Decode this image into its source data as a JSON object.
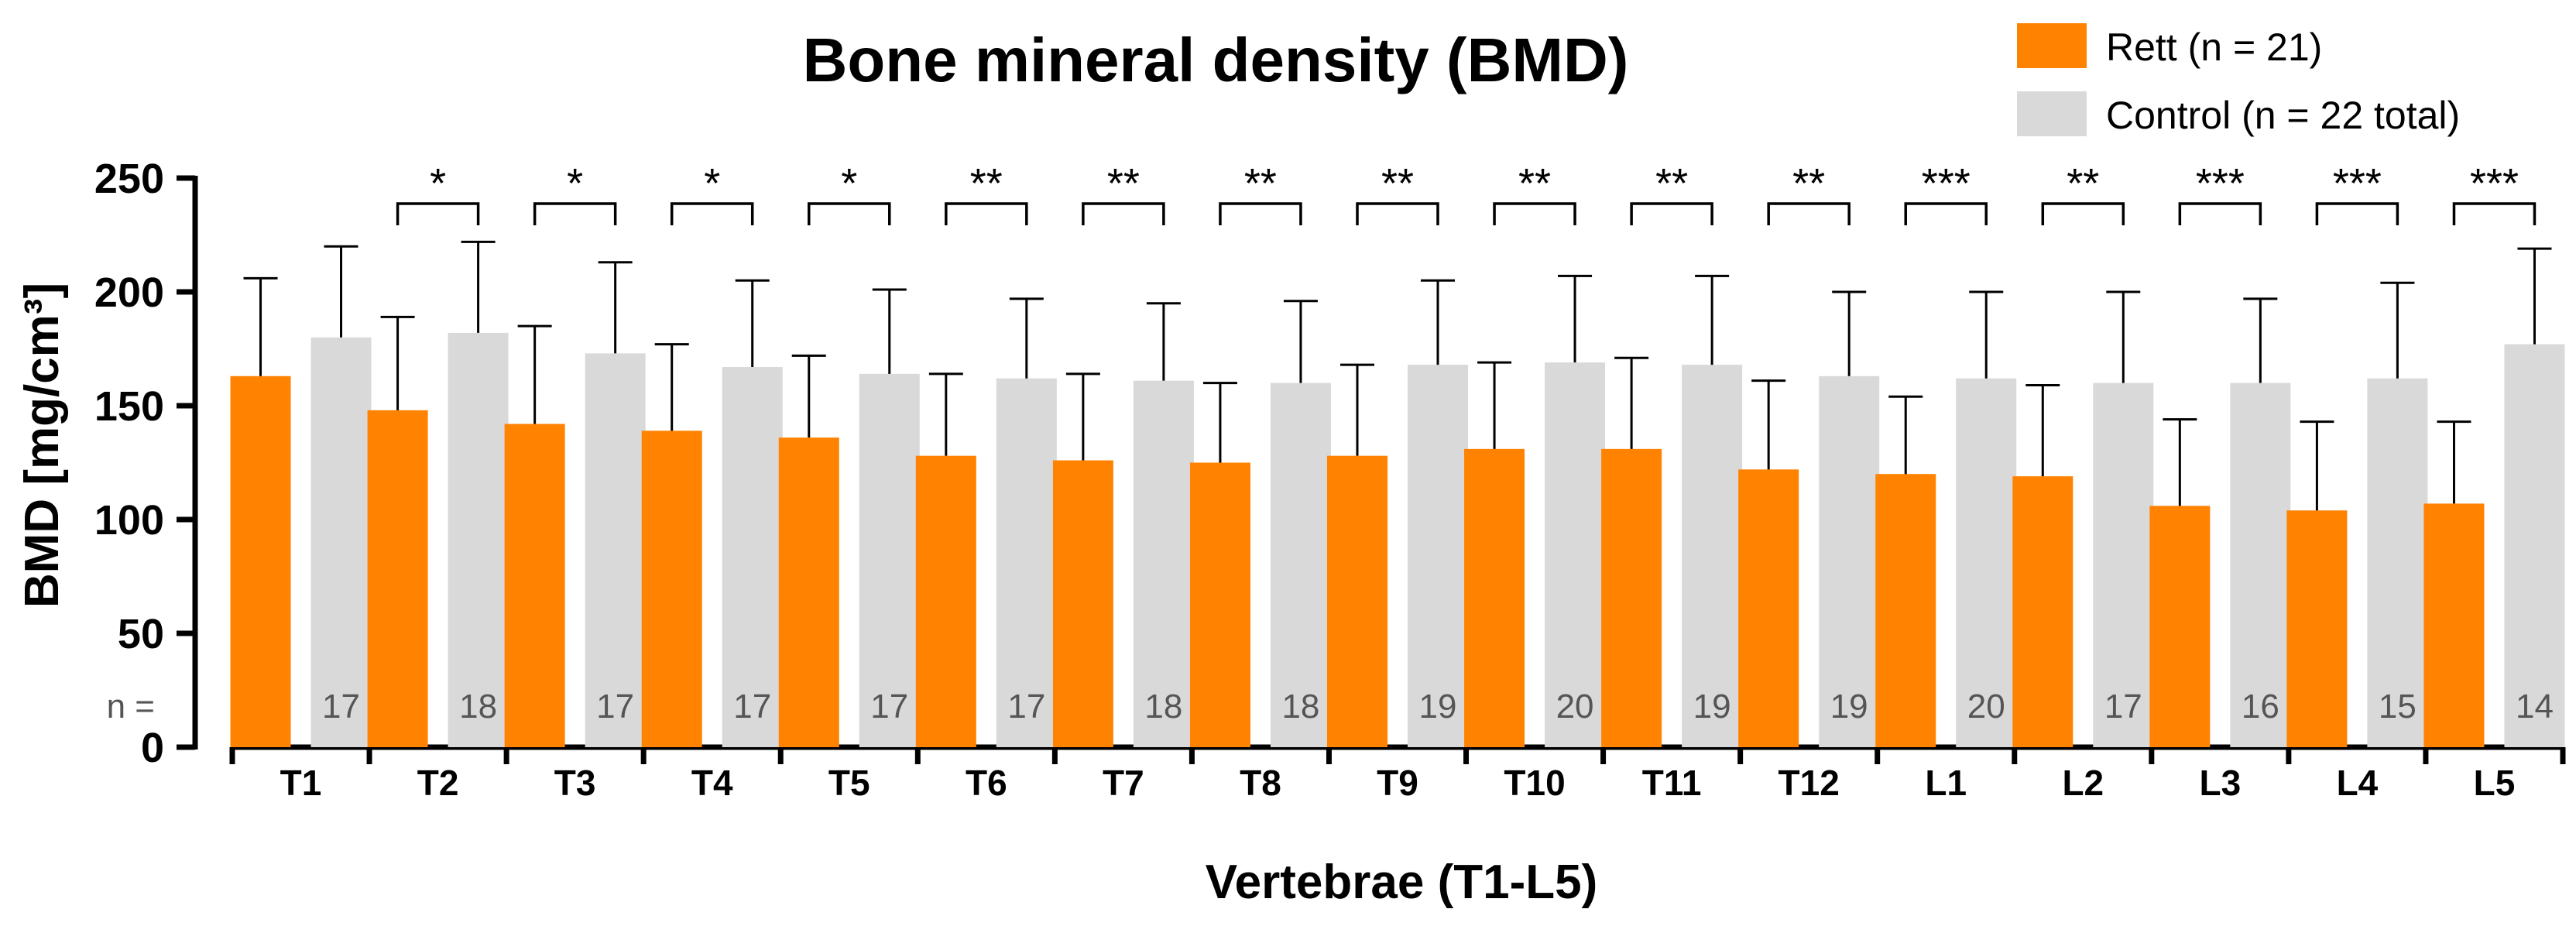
{
  "chart_data": {
    "type": "bar",
    "title": "Bone mineral density (BMD)",
    "xlabel": "Vertebrae (T1-L5)",
    "ylabel": "BMD [mg/cm³]",
    "ylim": [
      0,
      250
    ],
    "yticks": [
      "0",
      "50",
      "100",
      "150",
      "200",
      "250"
    ],
    "categories": [
      "T1",
      "T2",
      "T3",
      "T4",
      "T5",
      "T6",
      "T7",
      "T8",
      "T9",
      "T10",
      "T11",
      "T12",
      "L1",
      "L2",
      "L3",
      "L4",
      "L5"
    ],
    "series": [
      {
        "name": "Rett (n = 21)",
        "color": "#ff8200",
        "values": [
          163,
          148,
          142,
          139,
          136,
          128,
          126,
          125,
          128,
          131,
          131,
          122,
          120,
          119,
          106,
          104,
          107
        ],
        "error": [
          43,
          41,
          43,
          38,
          36,
          36,
          38,
          35,
          40,
          38,
          40,
          39,
          34,
          40,
          38,
          39,
          36
        ]
      },
      {
        "name": "Control (n = 22 total)",
        "color": "#d9d9d9",
        "values": [
          180,
          182,
          173,
          167,
          164,
          162,
          161,
          160,
          168,
          169,
          168,
          163,
          162,
          160,
          160,
          162,
          177
        ],
        "error": [
          40,
          40,
          40,
          38,
          37,
          35,
          34,
          36,
          37,
          38,
          39,
          37,
          38,
          40,
          37,
          42,
          42
        ]
      }
    ],
    "n_prefix": "n =",
    "n_values": [
      "17",
      "18",
      "17",
      "17",
      "17",
      "17",
      "18",
      "18",
      "19",
      "20",
      "19",
      "19",
      "20",
      "17",
      "16",
      "15",
      "14"
    ],
    "significance": [
      "",
      "*",
      "*",
      "*",
      "*",
      "**",
      "**",
      "**",
      "**",
      "**",
      "**",
      "**",
      "***",
      "**",
      "***",
      "***",
      "***"
    ],
    "legend": [
      "Rett (n = 21)",
      "Control (n = 22 total)"
    ],
    "legend_position": "top-right",
    "grid": false
  }
}
